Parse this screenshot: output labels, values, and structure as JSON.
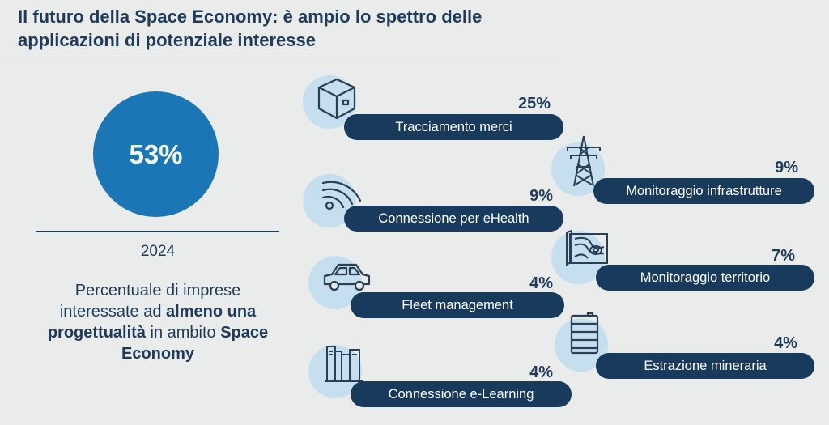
{
  "title": "Il futuro della Space Economy: è ampio lo spettro delle applicazioni di potenziale interesse",
  "summary": {
    "value": "53%",
    "year": "2024",
    "description_parts": [
      {
        "text": "Percentuale di imprese interessate ad ",
        "bold": false
      },
      {
        "text": "almeno una progettualità",
        "bold": true
      },
      {
        "text": " in ambito ",
        "bold": false
      },
      {
        "text": "Space Economy",
        "bold": true
      }
    ]
  },
  "chart_data": {
    "type": "bar",
    "categories": [
      "Tracciamento merci",
      "Monitoraggio infrastrutture",
      "Connessione per eHealth",
      "Monitoraggio territorio",
      "Fleet management",
      "Estrazione mineraria",
      "Connessione e-Learning"
    ],
    "values": [
      25,
      9,
      9,
      7,
      4,
      4,
      4
    ],
    "value_labels": [
      "25%",
      "9%",
      "9%",
      "7%",
      "4%",
      "4%",
      "4%"
    ],
    "icons": [
      "box-icon",
      "pylon-icon",
      "wifi-signal-icon",
      "map-icon",
      "car-icon",
      "barrel-icon",
      "books-icon"
    ],
    "colors": {
      "pill": "#183a5c",
      "icon_bg": "#c5dfee",
      "highlight": "#1a76b5"
    }
  }
}
